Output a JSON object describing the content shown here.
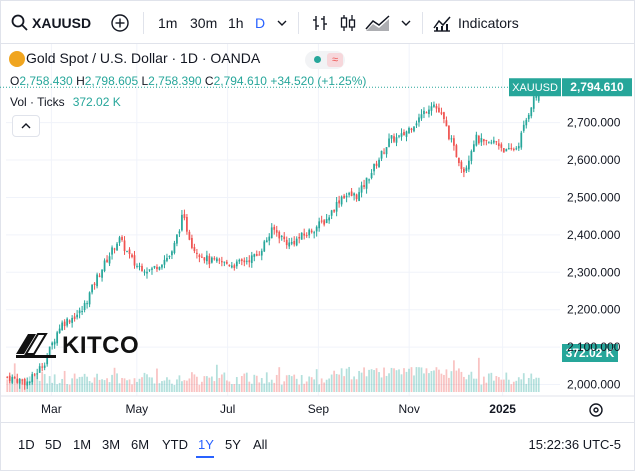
{
  "toolbar": {
    "symbol": "XAUUSD",
    "intervals": [
      "1m",
      "30m",
      "1h",
      "D"
    ],
    "active_interval": "D",
    "indicators_label": "Indicators"
  },
  "legend": {
    "title": "Gold Spot / U.S. Dollar · 1D · OANDA",
    "open_label": "O",
    "open": "2,758.430",
    "high_label": "H",
    "high": "2,798.605",
    "low_label": "L",
    "low": "2,758.390",
    "close_label": "C",
    "close": "2,794.610",
    "change": "+34.520 (+1.25%)",
    "volume_label": "Vol · Ticks",
    "volume": "372.02 K"
  },
  "price_axis": {
    "labels": [
      "2,700.000",
      "2,600.000",
      "2,500.000",
      "2,400.000",
      "2,300.000",
      "2,200.000",
      "2,100.000",
      "2,000.000"
    ],
    "symbol_tag": "XAUUSD",
    "last_price_tag": "2,794.610",
    "volume_tag": "372.02 K"
  },
  "time_axis": {
    "labels": [
      "Mar",
      "May",
      "Jul",
      "Sep",
      "Nov",
      "2025"
    ]
  },
  "watermark": {
    "brand": "KITCO"
  },
  "bottombar": {
    "ranges": [
      "1D",
      "5D",
      "1M",
      "3M",
      "6M",
      "YTD",
      "1Y",
      "5Y",
      "All"
    ],
    "active_range": "1Y",
    "time": "15:22:36 UTC-5"
  },
  "colors": {
    "up": "#26a69a",
    "down": "#ef5350",
    "accent": "#2962ff",
    "gold": "#f0a51f"
  },
  "chart_data": {
    "type": "candlestick",
    "symbol": "XAUUSD",
    "ylim": [
      1980,
      2830
    ],
    "y_ticks": [
      2000,
      2100,
      2200,
      2300,
      2400,
      2500,
      2600,
      2700
    ],
    "last_price": 2794.61,
    "anchors": [
      {
        "x": 0,
        "y": 2020
      },
      {
        "x": 0.04,
        "y": 2005
      },
      {
        "x": 0.07,
        "y": 2060
      },
      {
        "x": 0.1,
        "y": 2160
      },
      {
        "x": 0.14,
        "y": 2195
      },
      {
        "x": 0.17,
        "y": 2290
      },
      {
        "x": 0.21,
        "y": 2390
      },
      {
        "x": 0.24,
        "y": 2320
      },
      {
        "x": 0.27,
        "y": 2305
      },
      {
        "x": 0.31,
        "y": 2350
      },
      {
        "x": 0.33,
        "y": 2450
      },
      {
        "x": 0.35,
        "y": 2365
      },
      {
        "x": 0.38,
        "y": 2330
      },
      {
        "x": 0.43,
        "y": 2320
      },
      {
        "x": 0.47,
        "y": 2345
      },
      {
        "x": 0.5,
        "y": 2415
      },
      {
        "x": 0.53,
        "y": 2375
      },
      {
        "x": 0.56,
        "y": 2400
      },
      {
        "x": 0.6,
        "y": 2440
      },
      {
        "x": 0.63,
        "y": 2505
      },
      {
        "x": 0.66,
        "y": 2505
      },
      {
        "x": 0.69,
        "y": 2580
      },
      {
        "x": 0.72,
        "y": 2655
      },
      {
        "x": 0.74,
        "y": 2660
      },
      {
        "x": 0.78,
        "y": 2720
      },
      {
        "x": 0.8,
        "y": 2755
      },
      {
        "x": 0.82,
        "y": 2710
      },
      {
        "x": 0.84,
        "y": 2630
      },
      {
        "x": 0.86,
        "y": 2570
      },
      {
        "x": 0.88,
        "y": 2660
      },
      {
        "x": 0.9,
        "y": 2640
      },
      {
        "x": 0.92,
        "y": 2650
      },
      {
        "x": 0.94,
        "y": 2620
      },
      {
        "x": 0.96,
        "y": 2635
      },
      {
        "x": 0.985,
        "y": 2745
      },
      {
        "x": 1.0,
        "y": 2795
      }
    ]
  }
}
